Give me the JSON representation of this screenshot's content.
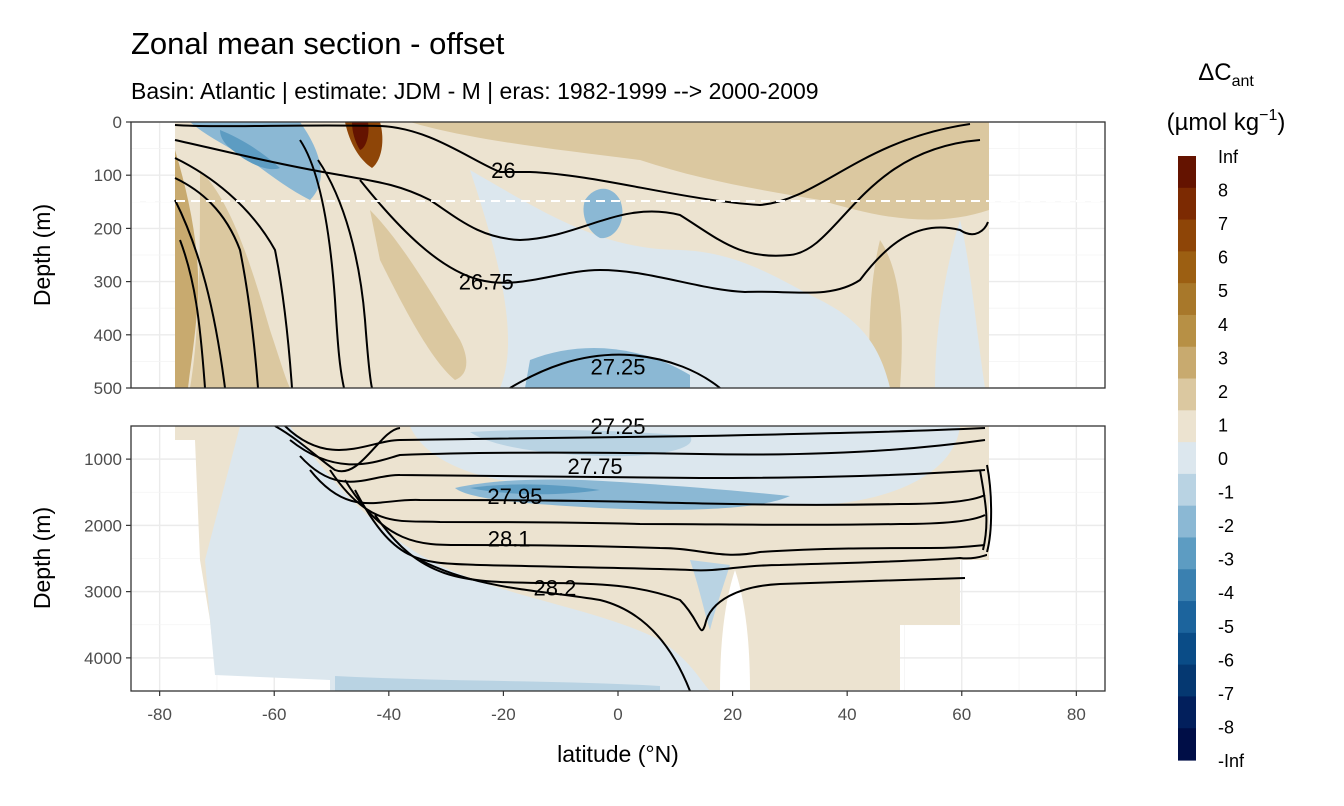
{
  "chart_data": {
    "type": "heatmap",
    "title": "Zonal mean section - offset",
    "subtitle": "Basin: Atlantic | estimate: JDM - M | eras: 1982-1999 --> 2000-2009",
    "xlabel": "latitude (°N)",
    "ylabel": "Depth (m)",
    "xlim": [
      -85,
      85
    ],
    "x_ticks": [
      -80,
      -60,
      -40,
      -20,
      0,
      20,
      40,
      60,
      80
    ],
    "x_tick_labels": [
      "-80",
      "-60",
      "-40",
      "-20",
      "0",
      "20",
      "40",
      "60",
      "80"
    ],
    "grid": true,
    "panels": [
      {
        "name": "upper",
        "ylim": [
          0,
          500
        ],
        "y_reversed": true,
        "y_ticks": [
          0,
          100,
          200,
          300,
          400,
          500
        ],
        "y_tick_labels": [
          "0",
          "100",
          "200",
          "300",
          "400",
          "500"
        ],
        "reference_line_depth": 150
      },
      {
        "name": "lower",
        "ylim": [
          500,
          4500
        ],
        "y_reversed": true,
        "y_ticks": [
          1000,
          2000,
          3000,
          4000
        ],
        "y_tick_labels": [
          "1000",
          "2000",
          "3000",
          "4000"
        ]
      }
    ],
    "contours": [
      {
        "label": "26",
        "label_lat": -20,
        "label_depth": 90
      },
      {
        "label": "26.75",
        "label_lat": -23,
        "label_depth": 300
      },
      {
        "label": "27.25",
        "label_lat": 0,
        "label_depth": 460
      },
      {
        "label": "27.25",
        "label_lat": 0,
        "label_depth": 500
      },
      {
        "label": "27.75",
        "label_lat": -4,
        "label_depth": 1100
      },
      {
        "label": "27.95",
        "label_lat": -18,
        "label_depth": 1560
      },
      {
        "label": "28.1",
        "label_lat": -19,
        "label_depth": 2200
      },
      {
        "label": "28.2",
        "label_lat": -11,
        "label_depth": 2940
      }
    ],
    "legend": {
      "title": "ΔC",
      "title_sub": "ant",
      "unit_main": "(µmol kg",
      "unit_sup": "−1",
      "unit_end": ")",
      "placement": "right",
      "levels": [
        "Inf",
        "8",
        "7",
        "6",
        "5",
        "4",
        "3",
        "2",
        "1",
        "0",
        "-1",
        "-2",
        "-3",
        "-4",
        "-5",
        "-6",
        "-7",
        "-8",
        "-Inf"
      ],
      "colors": [
        "#641300",
        "#7c2a02",
        "#8e4507",
        "#9c5f12",
        "#a8782a",
        "#b79045",
        "#c8aa6f",
        "#dbc8a0",
        "#ece3d0",
        "#dce7ee",
        "#b9d3e3",
        "#8bb8d4",
        "#5d9cc2",
        "#3a80b0",
        "#1c649d",
        "#0a4c87",
        "#053871",
        "#021f5c",
        "#000e47"
      ]
    }
  }
}
